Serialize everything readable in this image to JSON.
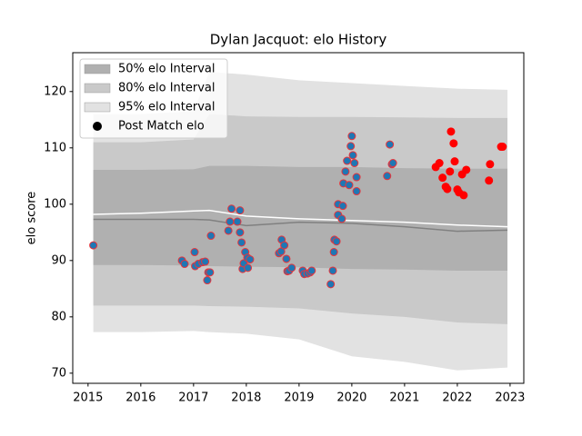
{
  "chart_data": {
    "type": "interval-scatter",
    "title": "Dylan Jacquot: elo History",
    "y_label": "elo score",
    "xlim": [
      2014.71,
      2023.26
    ],
    "ylim": [
      68.2,
      126.9
    ],
    "xticks": [
      2015,
      2016,
      2017,
      2018,
      2019,
      2020,
      2021,
      2022,
      2023
    ],
    "yticks": [
      70,
      80,
      90,
      100,
      110,
      120
    ],
    "grid": false,
    "legend": "upper left",
    "band_x": [
      2015.1,
      2016,
      2017,
      2017.3,
      2018,
      2019,
      2020,
      2021,
      2022,
      2022.95
    ],
    "bands": [
      {
        "name": "50% elo Interval",
        "color": "#b0b0b0",
        "upper": [
          106.1,
          106.1,
          106.2,
          106.8,
          106.8,
          106.6,
          106.6,
          106.4,
          106.3,
          106.3
        ],
        "lower": [
          89.2,
          89.2,
          89.1,
          89.0,
          88.9,
          88.8,
          88.5,
          88.4,
          88.2,
          88.2
        ]
      },
      {
        "name": "80% elo Interval",
        "color": "#c9c9c9",
        "upper": [
          111,
          111,
          111.5,
          116,
          115.6,
          115.5,
          115.5,
          115.4,
          115.3,
          115.3
        ],
        "lower": [
          82,
          82,
          82,
          81.9,
          81.8,
          81.5,
          80.6,
          80,
          79,
          78.7
        ]
      },
      {
        "name": "95% elo Interval",
        "color": "#e2e2e2",
        "upper": [
          116,
          116,
          116.5,
          123.5,
          123,
          122,
          121.5,
          121,
          120.5,
          120.3
        ],
        "lower": [
          77.3,
          77.3,
          77.5,
          77.3,
          77,
          76,
          73,
          72,
          70.5,
          71
        ]
      }
    ],
    "lines": [
      {
        "color": "#ffffff",
        "values": [
          98.2,
          98.4,
          98.8,
          98.9,
          97.9,
          97.4,
          97.1,
          96.8,
          96.3,
          96.0
        ]
      },
      {
        "color": "#808080",
        "values": [
          97.3,
          97.3,
          97.3,
          97.2,
          96.2,
          96.8,
          96.6,
          96.0,
          95.2,
          95.4
        ]
      }
    ],
    "legend_marker": {
      "name": "Post Match elo",
      "color": "#000000"
    },
    "point_groups": [
      {
        "color": "#1f77b4",
        "edge": "#e8343a",
        "x": [
          2015.1,
          2016.78,
          2016.83,
          2017.02,
          2017.03,
          2017.09,
          2017.17,
          2017.22,
          2017.28,
          2017.26,
          2017.31,
          2017.33,
          2017.66,
          2017.69,
          2017.72,
          2017.83,
          2017.88,
          2017.88,
          2017.91,
          2017.93,
          2017.95,
          2017.98,
          2018.02,
          2018.03,
          2018.07,
          2018.62,
          2018.66,
          2018.67,
          2018.72,
          2018.76,
          2018.78,
          2018.81,
          2018.86,
          2019.07,
          2019.1,
          2019.16,
          2019.21,
          2019.24,
          2019.6,
          2019.64,
          2019.66,
          2019.67,
          2019.71,
          2019.74,
          2019.74,
          2019.81,
          2019.83,
          2019.84,
          2019.88,
          2019.91,
          2019.95,
          2019.98,
          2020.0,
          2020.02,
          2020.05,
          2020.09,
          2020.09,
          2020.67,
          2020.72,
          2020.76,
          2020.78
        ],
        "values": [
          92.7,
          90.0,
          89.4,
          91.5,
          89.0,
          89.4,
          89.7,
          89.8,
          87.9,
          86.5,
          87.9,
          94.4,
          95.3,
          96.9,
          99.2,
          96.9,
          95.0,
          98.9,
          93.2,
          88.5,
          89.5,
          91.5,
          90.5,
          88.7,
          90.2,
          91.3,
          91.6,
          93.7,
          92.7,
          90.3,
          88.1,
          88.2,
          88.7,
          88.2,
          87.6,
          87.7,
          87.9,
          88.2,
          85.8,
          88.2,
          91.5,
          93.7,
          93.4,
          98.1,
          100.0,
          97.4,
          99.7,
          103.7,
          105.8,
          107.7,
          103.4,
          110.3,
          112.1,
          108.7,
          107.3,
          104.8,
          102.3,
          105.0,
          110.6,
          107.1,
          107.3
        ]
      },
      {
        "color": "#ff0000",
        "edge": "#ff0000",
        "x": [
          2021.59,
          2021.66,
          2021.72,
          2021.78,
          2021.81,
          2021.86,
          2021.88,
          2021.93,
          2021.95,
          2022.0,
          2022.03,
          2022.09,
          2022.12,
          2022.17,
          2022.6,
          2022.62,
          2022.83,
          2022.86
        ],
        "values": [
          106.6,
          107.3,
          104.7,
          103.1,
          102.7,
          105.8,
          112.9,
          110.8,
          107.6,
          102.6,
          102.1,
          105.3,
          101.6,
          106.1,
          104.2,
          107.1,
          110.2,
          110.2
        ]
      }
    ]
  }
}
